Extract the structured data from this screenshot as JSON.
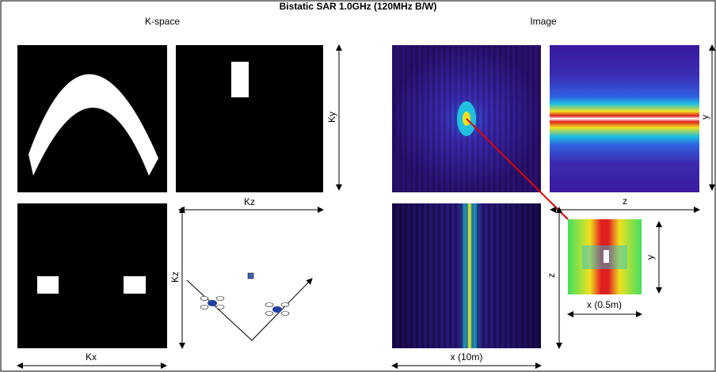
{
  "title": "Bistatic SAR 1.0GHz (120MHz B/W)",
  "sections": {
    "kspace": "K-space",
    "image": "Image"
  },
  "labels": {
    "ky": "Ky",
    "kz_top": "Kz",
    "kz_side": "Kz",
    "kx": "Kx",
    "y_top": "y",
    "z_top": "z",
    "z_side": "z",
    "x_full": "x (10m)",
    "y_zoom": "y",
    "x_zoom": "x (0.5m)"
  }
}
